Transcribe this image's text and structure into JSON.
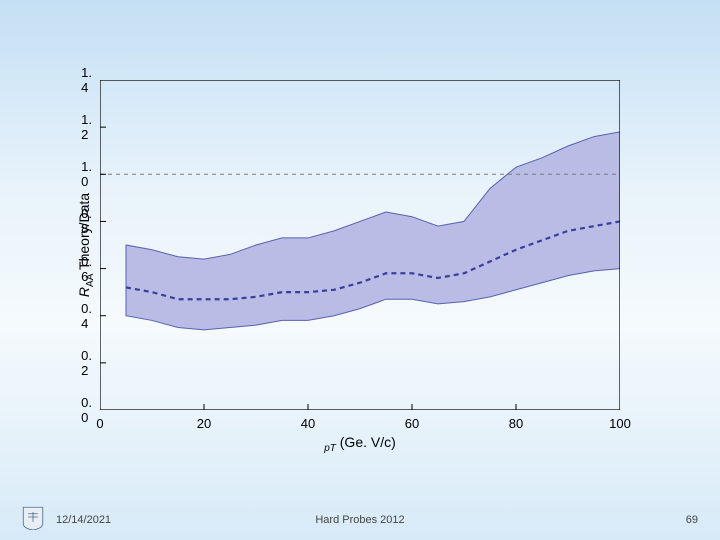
{
  "footer": {
    "date": "12/14/2021",
    "center": "Hard Probes 2012",
    "slide_number": "69"
  },
  "chart": {
    "type": "band-line",
    "xlabel_prefix_italic": "p",
    "xlabel_sub": "T",
    "xlabel_rest": " (Ge. V/c)",
    "ylabel_prefix_italic": "R",
    "ylabel_sub": "AA",
    "ylabel_rest": " Theory/Data",
    "xlim": [
      0,
      100
    ],
    "ylim": [
      0.0,
      1.4
    ],
    "xticks": [
      0,
      20,
      40,
      60,
      80,
      100
    ],
    "yticks": [
      0.0,
      0.2,
      0.4,
      0.6,
      0.8,
      1.0,
      1.2,
      1.4
    ],
    "ytick_labels": [
      "0. 0",
      "0. 2",
      "0. 4",
      "0. 6",
      "0. 8",
      "1. 0",
      "1. 2",
      "1. 4"
    ],
    "xtick_labels": [
      "0",
      "20",
      "40",
      "60",
      "80",
      "100"
    ],
    "label_fontsize": 14,
    "tick_fontsize": 13,
    "background_color": "transparent",
    "axis_color": "#000000",
    "hline_y": 1.0,
    "hline_color": "#7a7a7a",
    "hline_dash": "4,4",
    "band_fill": "#b9bce4",
    "band_stroke": "#5a5fb0",
    "band_stroke_width": 1,
    "center_line_color": "#3a3f9e",
    "center_line_width": 2.2,
    "center_line_dash": "5,4",
    "series": {
      "x": [
        5,
        10,
        15,
        20,
        25,
        30,
        35,
        40,
        45,
        50,
        55,
        60,
        65,
        70,
        75,
        80,
        85,
        90,
        95,
        100
      ],
      "upper": [
        0.7,
        0.68,
        0.65,
        0.64,
        0.66,
        0.7,
        0.73,
        0.73,
        0.76,
        0.8,
        0.84,
        0.82,
        0.78,
        0.8,
        0.94,
        1.03,
        1.07,
        1.12,
        1.16,
        1.18
      ],
      "center": [
        0.52,
        0.5,
        0.47,
        0.47,
        0.47,
        0.48,
        0.5,
        0.5,
        0.51,
        0.54,
        0.58,
        0.58,
        0.56,
        0.58,
        0.63,
        0.68,
        0.72,
        0.76,
        0.78,
        0.8
      ],
      "lower": [
        0.4,
        0.38,
        0.35,
        0.34,
        0.35,
        0.36,
        0.38,
        0.38,
        0.4,
        0.43,
        0.47,
        0.47,
        0.45,
        0.46,
        0.48,
        0.51,
        0.54,
        0.57,
        0.59,
        0.6
      ]
    }
  }
}
